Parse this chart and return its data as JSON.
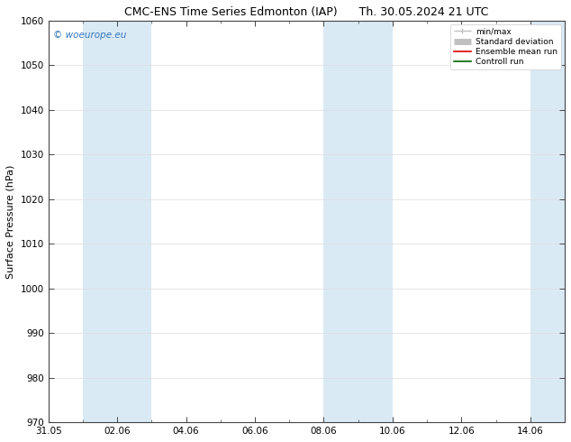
{
  "title_left": "CMC-ENS Time Series Edmonton (IAP)",
  "title_right": "Th. 30.05.2024 21 UTC",
  "ylabel": "Surface Pressure (hPa)",
  "ylim": [
    970,
    1060
  ],
  "yticks": [
    970,
    980,
    990,
    1000,
    1010,
    1020,
    1030,
    1040,
    1050,
    1060
  ],
  "xtick_positions": [
    0,
    2,
    4,
    6,
    8,
    10,
    12,
    14
  ],
  "xtick_labels": [
    "31.05",
    "02.06",
    "04.06",
    "06.06",
    "08.06",
    "10.06",
    "12.06",
    "14.06"
  ],
  "xlim": [
    0,
    15
  ],
  "minor_xtick_positions": [
    0,
    1,
    2,
    3,
    4,
    5,
    6,
    7,
    8,
    9,
    10,
    11,
    12,
    13,
    14,
    15
  ],
  "shaded_bands": [
    {
      "x_start": 1,
      "x_end": 3
    },
    {
      "x_start": 8,
      "x_end": 10
    },
    {
      "x_start": 14,
      "x_end": 15
    }
  ],
  "band_color": "#daeaf5",
  "watermark_text": "© woeurope.eu",
  "watermark_color": "#3377bb",
  "legend_entries": [
    {
      "label": "min/max",
      "color": "#c0c0c0",
      "lw": 1.0
    },
    {
      "label": "Standard deviation",
      "color": "#c0c0c0",
      "lw": 5
    },
    {
      "label": "Ensemble mean run",
      "color": "#dd0000",
      "lw": 1.2
    },
    {
      "label": "Controll run",
      "color": "#006600",
      "lw": 1.2
    }
  ],
  "background_color": "#ffffff",
  "grid_color": "#dddddd",
  "title_fontsize": 9,
  "label_fontsize": 8,
  "tick_fontsize": 7.5
}
